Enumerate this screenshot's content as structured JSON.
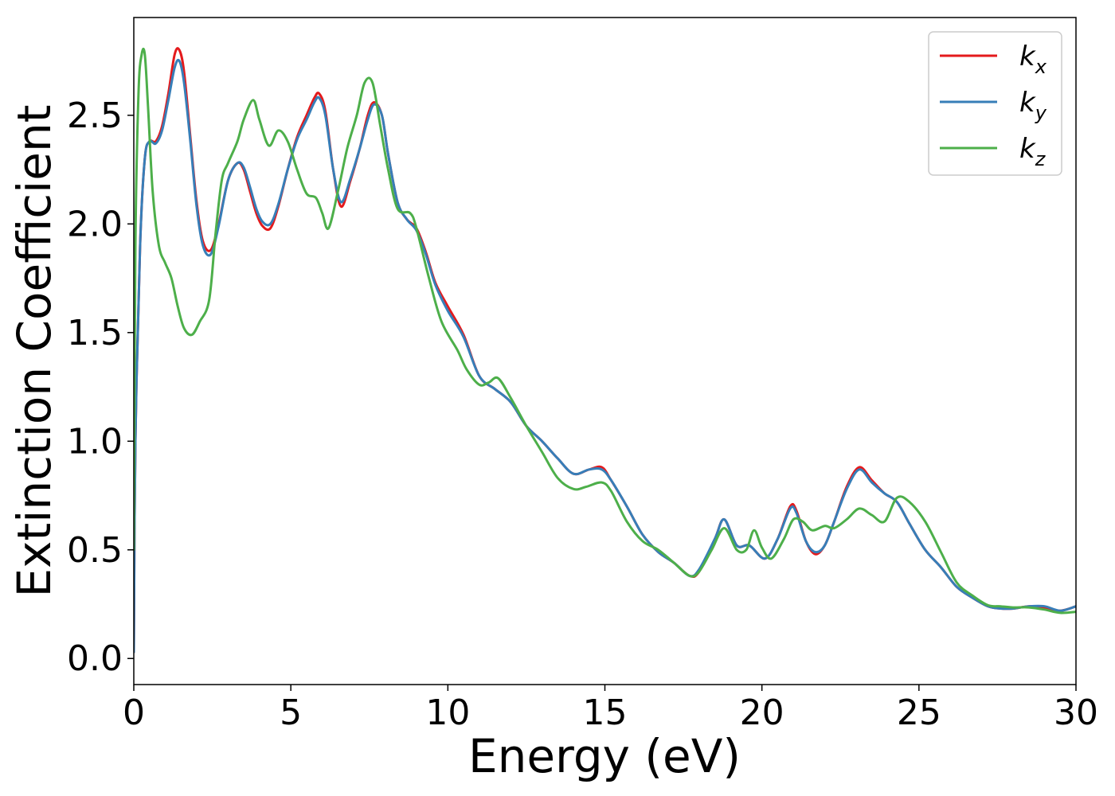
{
  "chart_data": {
    "type": "line",
    "title": "",
    "xlabel": "Energy (eV)",
    "ylabel": "Extinction Coefficient",
    "xlim": [
      0,
      30
    ],
    "ylim": [
      -0.12,
      2.95
    ],
    "xticks": [
      0,
      5,
      10,
      15,
      20,
      25,
      30
    ],
    "xtick_labels": [
      "0",
      "5",
      "10",
      "15",
      "20",
      "25",
      "30"
    ],
    "yticks": [
      0.0,
      0.5,
      1.0,
      1.5,
      2.0,
      2.5
    ],
    "ytick_labels": [
      "0.0",
      "0.5",
      "1.0",
      "1.5",
      "2.0",
      "2.5"
    ],
    "grid": false,
    "legend_position": "top-right",
    "series": [
      {
        "name": "k_x",
        "label_main": "k",
        "label_sub": "x",
        "color": "#e41a1c",
        "x": [
          0,
          0.05,
          0.2,
          0.35,
          0.5,
          0.7,
          0.9,
          1.1,
          1.3,
          1.45,
          1.6,
          1.8,
          2.0,
          2.2,
          2.45,
          2.7,
          3.0,
          3.3,
          3.5,
          3.7,
          3.9,
          4.1,
          4.35,
          4.6,
          4.9,
          5.2,
          5.5,
          5.75,
          5.9,
          6.1,
          6.35,
          6.6,
          6.9,
          7.2,
          7.45,
          7.65,
          7.9,
          8.1,
          8.4,
          8.7,
          9.0,
          9.3,
          9.6,
          10.0,
          10.5,
          11.0,
          11.5,
          12.0,
          12.5,
          13.0,
          13.5,
          14.0,
          14.5,
          14.9,
          15.2,
          15.7,
          16.2,
          16.7,
          17.2,
          17.7,
          18.0,
          18.5,
          18.8,
          19.2,
          19.6,
          20.1,
          20.5,
          20.9,
          21.1,
          21.4,
          21.7,
          22.0,
          22.3,
          22.7,
          23.1,
          23.5,
          23.9,
          24.3,
          24.7,
          25.2,
          25.7,
          26.2,
          26.7,
          27.2,
          27.6,
          28.0,
          28.5,
          29.0,
          29.5,
          30.0
        ],
        "y": [
          0.03,
          1.0,
          1.9,
          2.3,
          2.38,
          2.38,
          2.45,
          2.6,
          2.78,
          2.8,
          2.7,
          2.4,
          2.1,
          1.92,
          1.88,
          2.0,
          2.2,
          2.28,
          2.25,
          2.15,
          2.05,
          1.99,
          1.98,
          2.08,
          2.25,
          2.4,
          2.5,
          2.58,
          2.6,
          2.52,
          2.25,
          2.08,
          2.2,
          2.35,
          2.5,
          2.56,
          2.5,
          2.32,
          2.1,
          2.02,
          1.98,
          1.87,
          1.73,
          1.62,
          1.49,
          1.3,
          1.24,
          1.18,
          1.07,
          1.0,
          0.92,
          0.85,
          0.87,
          0.88,
          0.82,
          0.7,
          0.57,
          0.49,
          0.44,
          0.38,
          0.4,
          0.55,
          0.64,
          0.52,
          0.52,
          0.46,
          0.55,
          0.7,
          0.68,
          0.54,
          0.48,
          0.52,
          0.63,
          0.79,
          0.88,
          0.82,
          0.76,
          0.72,
          0.62,
          0.5,
          0.42,
          0.33,
          0.28,
          0.24,
          0.23,
          0.23,
          0.24,
          0.235,
          0.22,
          0.24
        ]
      },
      {
        "name": "k_y",
        "label_main": "k",
        "label_sub": "y",
        "color": "#377eb8",
        "x": [
          0,
          0.05,
          0.2,
          0.35,
          0.5,
          0.7,
          0.9,
          1.1,
          1.3,
          1.45,
          1.6,
          1.8,
          2.0,
          2.2,
          2.45,
          2.7,
          3.0,
          3.3,
          3.5,
          3.7,
          3.9,
          4.1,
          4.35,
          4.6,
          4.9,
          5.2,
          5.5,
          5.75,
          5.9,
          6.1,
          6.35,
          6.6,
          6.9,
          7.2,
          7.45,
          7.65,
          7.9,
          8.1,
          8.4,
          8.7,
          9.0,
          9.3,
          9.6,
          10.0,
          10.5,
          11.0,
          11.5,
          12.0,
          12.5,
          13.0,
          13.5,
          14.0,
          14.5,
          14.9,
          15.2,
          15.7,
          16.2,
          16.7,
          17.2,
          17.7,
          18.0,
          18.5,
          18.8,
          19.2,
          19.6,
          20.1,
          20.5,
          20.9,
          21.1,
          21.4,
          21.7,
          22.0,
          22.3,
          22.7,
          23.1,
          23.5,
          23.9,
          24.3,
          24.7,
          25.2,
          25.7,
          26.2,
          26.7,
          27.2,
          27.6,
          28.0,
          28.5,
          29.0,
          29.5,
          30.0
        ],
        "y": [
          0.03,
          1.0,
          1.9,
          2.3,
          2.38,
          2.37,
          2.43,
          2.57,
          2.72,
          2.75,
          2.65,
          2.38,
          2.08,
          1.9,
          1.86,
          1.99,
          2.2,
          2.28,
          2.26,
          2.17,
          2.07,
          2.01,
          2.0,
          2.09,
          2.25,
          2.39,
          2.48,
          2.56,
          2.58,
          2.5,
          2.25,
          2.1,
          2.21,
          2.35,
          2.48,
          2.55,
          2.5,
          2.32,
          2.1,
          2.02,
          1.97,
          1.86,
          1.72,
          1.6,
          1.48,
          1.3,
          1.24,
          1.18,
          1.07,
          1.0,
          0.92,
          0.85,
          0.87,
          0.87,
          0.82,
          0.7,
          0.57,
          0.49,
          0.44,
          0.38,
          0.41,
          0.55,
          0.64,
          0.52,
          0.52,
          0.46,
          0.55,
          0.69,
          0.67,
          0.54,
          0.49,
          0.52,
          0.63,
          0.78,
          0.87,
          0.81,
          0.76,
          0.72,
          0.62,
          0.5,
          0.42,
          0.33,
          0.28,
          0.24,
          0.23,
          0.23,
          0.24,
          0.24,
          0.22,
          0.24
        ]
      },
      {
        "name": "k_z",
        "label_main": "k",
        "label_sub": "z",
        "color": "#4daf4a",
        "x": [
          0,
          0.05,
          0.15,
          0.25,
          0.35,
          0.45,
          0.6,
          0.8,
          1.0,
          1.2,
          1.4,
          1.6,
          1.85,
          2.1,
          2.4,
          2.6,
          2.8,
          3.0,
          3.3,
          3.5,
          3.8,
          4.0,
          4.3,
          4.6,
          4.9,
          5.2,
          5.5,
          5.8,
          6.0,
          6.2,
          6.5,
          6.8,
          7.1,
          7.35,
          7.6,
          7.85,
          8.1,
          8.4,
          8.8,
          9.0,
          9.4,
          9.8,
          10.3,
          10.6,
          11.0,
          11.3,
          11.6,
          12.0,
          12.5,
          13.0,
          13.5,
          14.0,
          14.4,
          14.9,
          15.2,
          15.7,
          16.2,
          16.7,
          17.2,
          17.7,
          18.0,
          18.4,
          18.8,
          19.2,
          19.5,
          19.75,
          20.0,
          20.3,
          20.7,
          21.0,
          21.3,
          21.6,
          22.0,
          22.3,
          22.7,
          23.1,
          23.5,
          23.9,
          24.3,
          24.7,
          25.2,
          25.7,
          26.2,
          26.7,
          27.2,
          27.6,
          28.0,
          28.5,
          29.0,
          29.5,
          30.0
        ],
        "y": [
          0.5,
          1.9,
          2.6,
          2.78,
          2.78,
          2.55,
          2.15,
          1.9,
          1.82,
          1.75,
          1.62,
          1.52,
          1.49,
          1.55,
          1.65,
          1.95,
          2.2,
          2.28,
          2.38,
          2.48,
          2.57,
          2.48,
          2.36,
          2.43,
          2.38,
          2.25,
          2.14,
          2.12,
          2.05,
          1.98,
          2.15,
          2.35,
          2.5,
          2.65,
          2.65,
          2.45,
          2.25,
          2.07,
          2.05,
          1.98,
          1.75,
          1.55,
          1.42,
          1.33,
          1.26,
          1.27,
          1.29,
          1.2,
          1.07,
          0.95,
          0.83,
          0.78,
          0.79,
          0.81,
          0.77,
          0.63,
          0.54,
          0.5,
          0.44,
          0.38,
          0.4,
          0.5,
          0.6,
          0.5,
          0.5,
          0.59,
          0.51,
          0.46,
          0.55,
          0.64,
          0.63,
          0.59,
          0.61,
          0.6,
          0.64,
          0.69,
          0.66,
          0.63,
          0.74,
          0.72,
          0.63,
          0.49,
          0.35,
          0.29,
          0.245,
          0.24,
          0.235,
          0.235,
          0.225,
          0.21,
          0.215
        ]
      }
    ]
  }
}
